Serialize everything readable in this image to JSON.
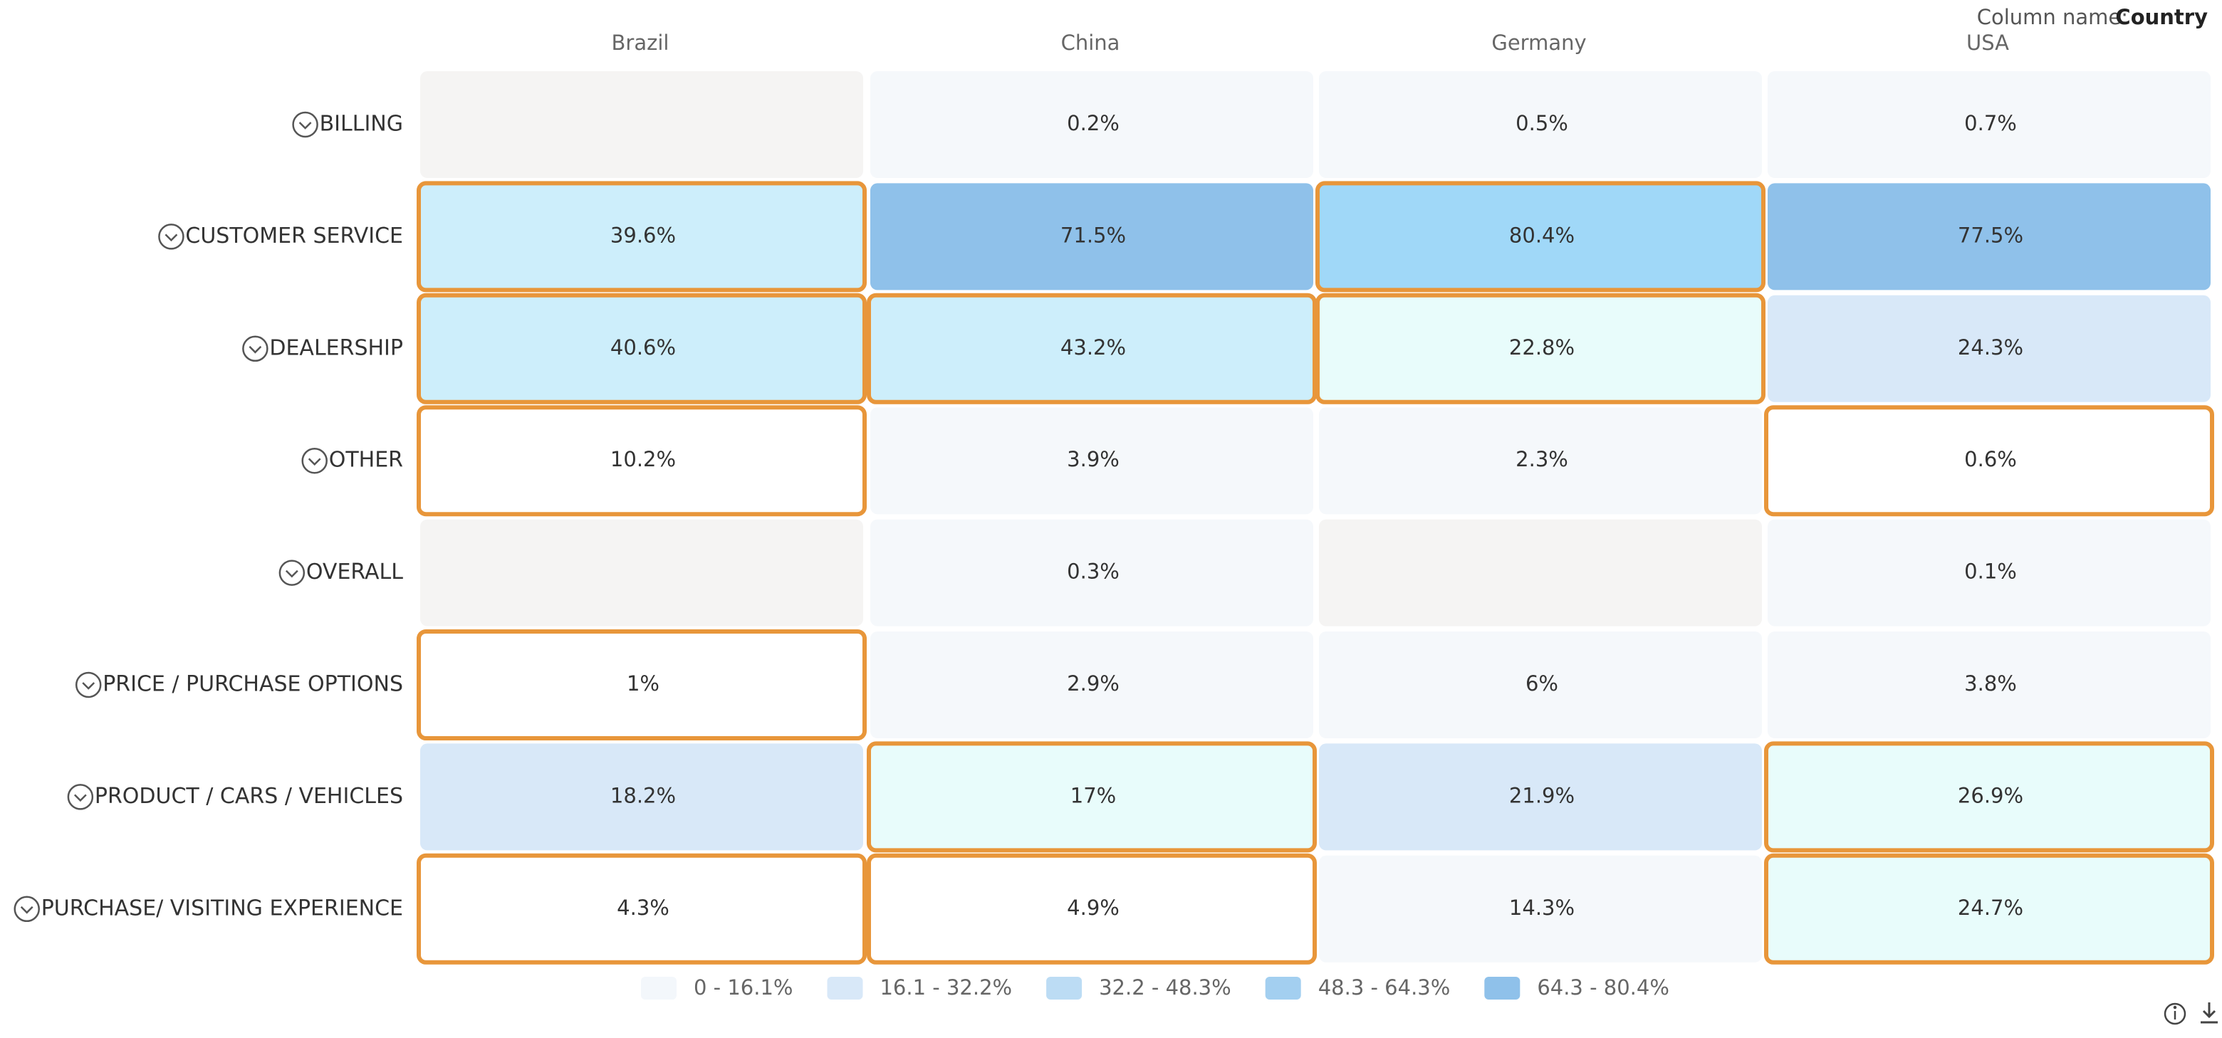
{
  "chart_data": {
    "type": "heatmap",
    "column_name_label": "Column name:",
    "column_name": "Country",
    "columns": [
      "Brazil",
      "China",
      "Germany",
      "USA"
    ],
    "categories": [
      "BILLING",
      "CUSTOMER SERVICE",
      "DEALERSHIP",
      "OTHER",
      "OVERALL",
      "PRICE / PURCHASE OPTIONS",
      "PRODUCT / CARS / VEHICLES",
      "PURCHASE/ VISITING EXPERIENCE"
    ],
    "values": [
      [
        null,
        0.2,
        0.5,
        0.7
      ],
      [
        39.6,
        71.5,
        80.4,
        77.5
      ],
      [
        40.6,
        43.2,
        22.8,
        24.3
      ],
      [
        10.2,
        3.9,
        2.3,
        0.6
      ],
      [
        null,
        0.3,
        null,
        0.1
      ],
      [
        1,
        2.9,
        6,
        3.8
      ],
      [
        18.2,
        17,
        21.9,
        26.9
      ],
      [
        4.3,
        4.9,
        14.3,
        24.7
      ]
    ],
    "value_labels": [
      [
        null,
        "0.2%",
        "0.5%",
        "0.7%"
      ],
      [
        "39.6%",
        "71.5%",
        "80.4%",
        "77.5%"
      ],
      [
        "40.6%",
        "43.2%",
        "22.8%",
        "24.3%"
      ],
      [
        "10.2%",
        "3.9%",
        "2.3%",
        "0.6%"
      ],
      [
        null,
        "0.3%",
        null,
        "0.1%"
      ],
      [
        "1%",
        "2.9%",
        "6%",
        "3.8%"
      ],
      [
        "18.2%",
        "17%",
        "21.9%",
        "26.9%"
      ],
      [
        "4.3%",
        "4.9%",
        "14.3%",
        "24.7%"
      ]
    ],
    "colors": [
      [
        "#f5f4f3",
        "#f5f8fb",
        "#f5f8fb",
        "#f5f8fb"
      ],
      [
        "#cdeefb",
        "#8fc1ea",
        "#a0d8f8",
        "#8fc1ea"
      ],
      [
        "#cdeefb",
        "#cdeefb",
        "#e8fcfb",
        "#d8e8f8"
      ],
      [
        "#ffffff",
        "#f5f8fb",
        "#f5f8fb",
        "#ffffff"
      ],
      [
        "#f5f4f3",
        "#f5f8fb",
        "#f5f4f3",
        "#f5f8fb"
      ],
      [
        "#ffffff",
        "#f5f8fb",
        "#f5f8fb",
        "#f5f8fb"
      ],
      [
        "#d8e8f8",
        "#e8fcfb",
        "#d8e8f8",
        "#e8fcfb"
      ],
      [
        "#ffffff",
        "#ffffff",
        "#f5f8fb",
        "#e8fcfb"
      ]
    ],
    "highlight": [
      [
        false,
        false,
        false,
        false
      ],
      [
        true,
        false,
        true,
        false
      ],
      [
        true,
        true,
        true,
        false
      ],
      [
        true,
        false,
        false,
        true
      ],
      [
        false,
        false,
        false,
        false
      ],
      [
        true,
        false,
        false,
        false
      ],
      [
        false,
        true,
        false,
        true
      ],
      [
        true,
        true,
        false,
        true
      ]
    ],
    "highlight_color": "#e8963a",
    "legend": [
      {
        "label": "0 - 16.1%",
        "color": "#f3f7fb"
      },
      {
        "label": "16.1 - 32.2%",
        "color": "#d8e8f8"
      },
      {
        "label": "32.2 - 48.3%",
        "color": "#bcdcf4"
      },
      {
        "label": "48.3 - 64.3%",
        "color": "#a3cff0"
      },
      {
        "label": "64.3 - 80.4%",
        "color": "#8fc1ea"
      }
    ]
  }
}
